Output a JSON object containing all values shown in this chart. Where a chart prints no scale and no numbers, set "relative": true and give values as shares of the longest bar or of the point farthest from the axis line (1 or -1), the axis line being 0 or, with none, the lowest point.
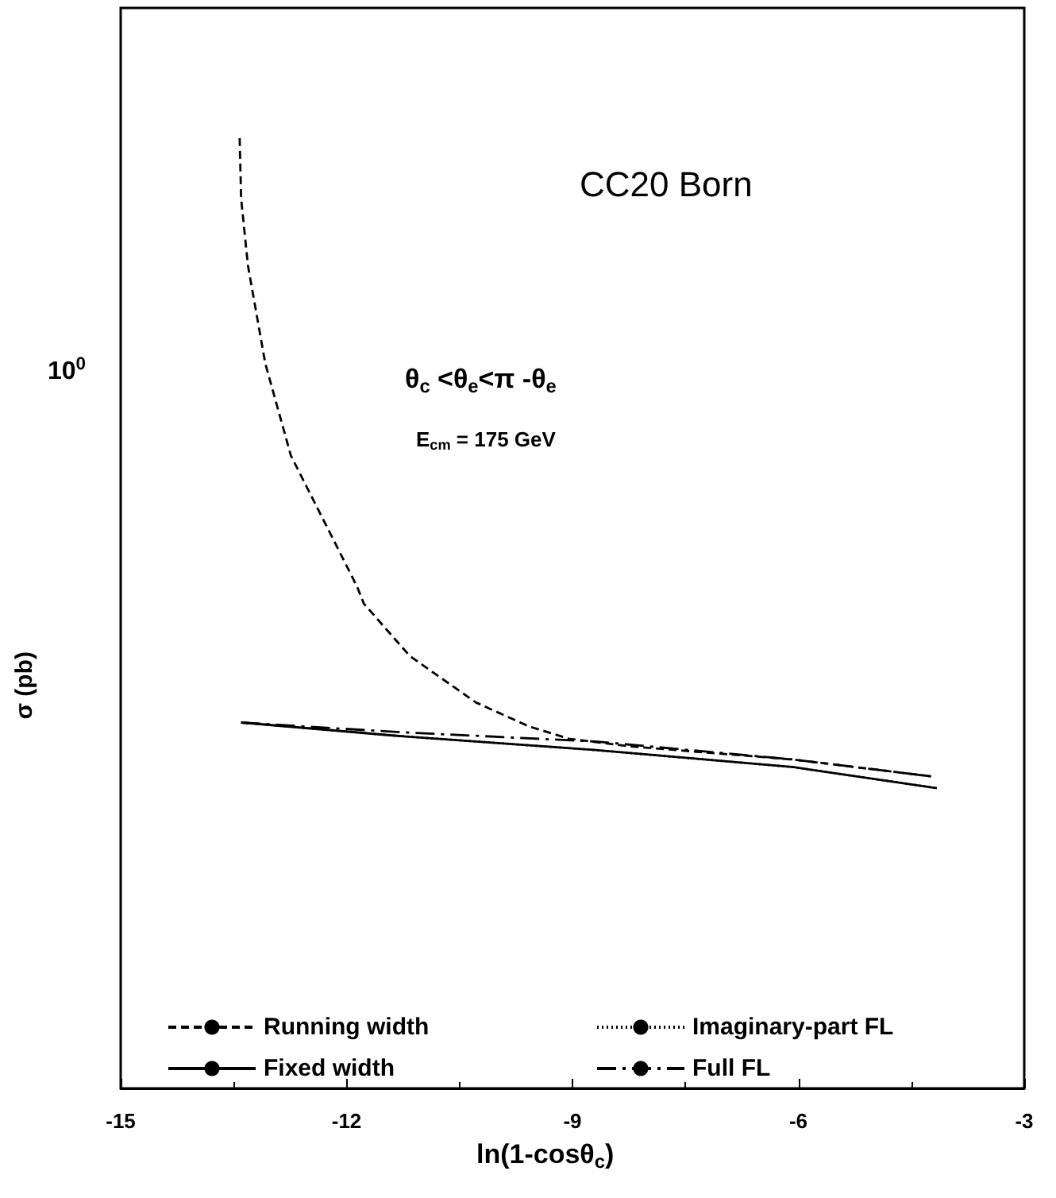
{
  "chart_data": {
    "type": "line",
    "relative": true,
    "title": "CC20 Born",
    "xlabel": "ln(1-cosθ$_{c}$)",
    "ylabel": "σ (pb)",
    "annotations": [
      "θ$_{c}$ <θ$_{e}$<π -θ$_{e}$",
      "E$_{cm}$ = 175 GeV",
      "10$^{0}$"
    ],
    "xlim": [
      -15,
      -3
    ],
    "xticks": [
      -15,
      -12,
      -9,
      -6,
      -3
    ],
    "grid": false,
    "legend": "bottom",
    "marker": "none",
    "series": [
      {
        "name": "Running width",
        "color": "#000000",
        "line_style": "dashed",
        "x": [
          -13.42,
          -13.4,
          -13.31,
          -13.08,
          -12.74,
          -11.86,
          -11.77,
          -11.16,
          -10.28,
          -9.58,
          -9.05,
          -8.25,
          -6.06,
          -4.2
        ],
        "values": [
          1.0,
          0.936,
          0.866,
          0.763,
          0.666,
          0.528,
          0.51,
          0.455,
          0.406,
          0.381,
          0.368,
          0.36,
          0.346,
          0.328
        ]
      },
      {
        "name": "Imaginary-part FL",
        "color": "#000000",
        "line_style": "dotted",
        "x": [
          -13.4,
          -11.33,
          -8.69,
          -6.06,
          -4.16
        ],
        "values": [
          0.385,
          0.371,
          0.356,
          0.338,
          0.316
        ]
      },
      {
        "name": "Fixed width",
        "color": "#000000",
        "line_style": "solid",
        "x": [
          -13.4,
          -11.33,
          -8.69,
          -6.06,
          -4.16
        ],
        "values": [
          0.385,
          0.371,
          0.356,
          0.338,
          0.316
        ]
      },
      {
        "name": "Full FL",
        "color": "#000000",
        "line_style": "dashdot",
        "x": [
          -13.4,
          -11.33,
          -8.69,
          -6.06,
          -4.2
        ],
        "values": [
          0.385,
          0.375,
          0.365,
          0.346,
          0.328
        ]
      }
    ]
  }
}
